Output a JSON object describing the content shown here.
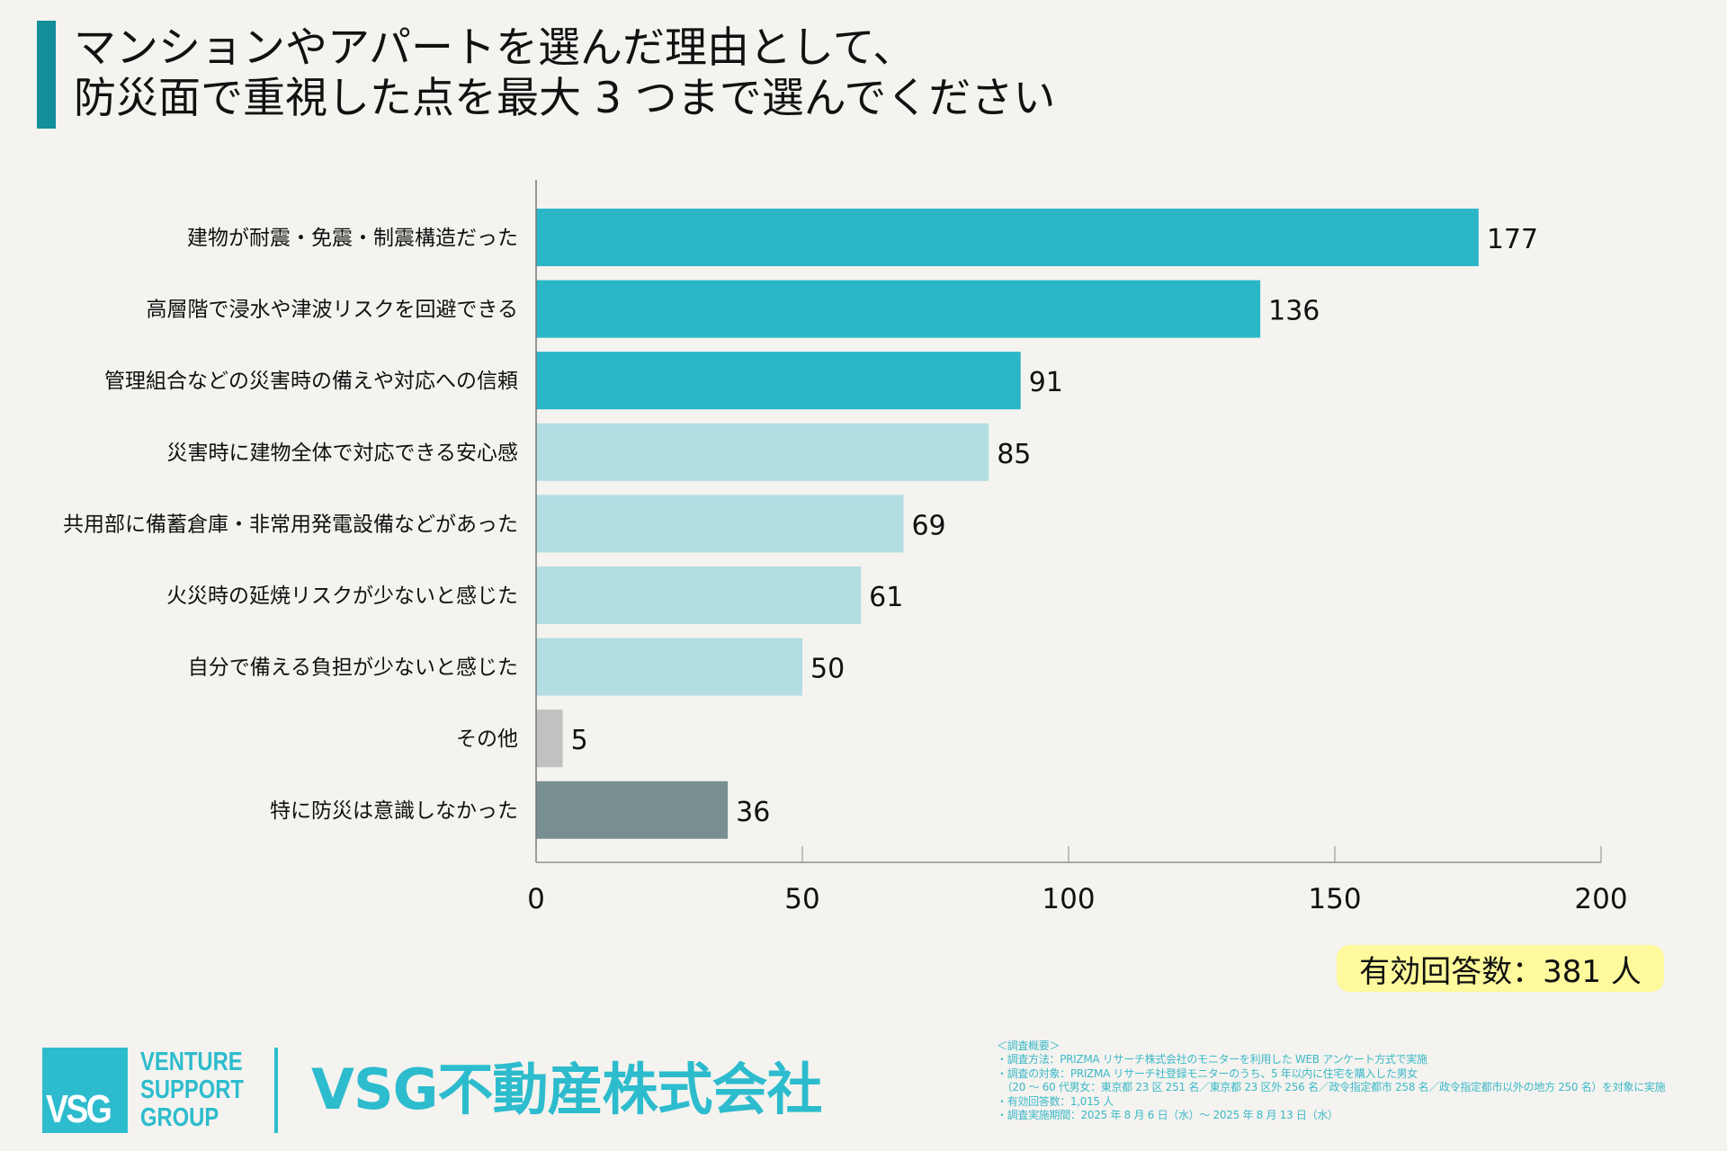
{
  "header": {
    "title_lines": [
      "マンションやアパートを選んだ理由として、",
      "防災面で重視した点を最大 3 つまで選んでください"
    ],
    "accent_color": "#128f9a"
  },
  "chart_data": {
    "type": "bar",
    "orientation": "horizontal",
    "title": "マンションやアパートを選んだ理由として、防災面で重視した点を最大 3 つまで選んでください",
    "xlabel": "",
    "ylabel": "",
    "xlim": [
      0,
      200
    ],
    "xticks": [
      0,
      50,
      100,
      150,
      200
    ],
    "grid": false,
    "categories": [
      "建物が耐震・免震・制震構造だった",
      "高層階で浸水や津波リスクを回避できる",
      "管理組合などの災害時の備えや対応への信頼",
      "災害時に建物全体で対応できる安心感",
      "共用部に備蓄倉庫・非常用発電設備などがあった",
      "火災時の延焼リスクが少ないと感じた",
      "自分で備える負担が少ないと感じた",
      "その他",
      "特に防災は意識しなかった"
    ],
    "values": [
      177,
      136,
      91,
      85,
      69,
      61,
      50,
      5,
      36
    ],
    "bar_colors": [
      "#2bb6c8",
      "#2bb6c8",
      "#2bb6c8",
      "#b2dde3",
      "#b2dde3",
      "#b2dde3",
      "#b2dde3",
      "#c1c1c1",
      "#788f92"
    ],
    "data_labels": [
      "177",
      "136",
      "91",
      "85",
      "69",
      "61",
      "50",
      "5",
      "36"
    ]
  },
  "badge": {
    "text": "有効回答数：381 人",
    "color": "#fdf99c"
  },
  "footer": {
    "logo_mark": "VSG",
    "logo_words": [
      "VENTURE",
      "SUPPORT",
      "GROUP"
    ],
    "company_name": "VSG不動産株式会社",
    "brand_color": "#2dbccd",
    "survey_lines": [
      "＜調査概要＞",
      "・調査方法：PRIZMA リサーチ株式会社のモニターを利用した WEB アンケート方式で実施",
      "・調査の対象：PRIZMA リサーチ社登録モニターのうち、5 年以内に住宅を購入した男女",
      "　（20 ～ 60 代男女：東京都 23 区 251 名／東京都 23 区外 256 名／政令指定都市 258 名／政令指定都市以外の地方 250 名）を対象に実施",
      "・有効回答数：1,015 人",
      "・調査実施期間：2025 年 8 月 6 日（水）～ 2025 年 8 月 13 日（水）"
    ]
  }
}
